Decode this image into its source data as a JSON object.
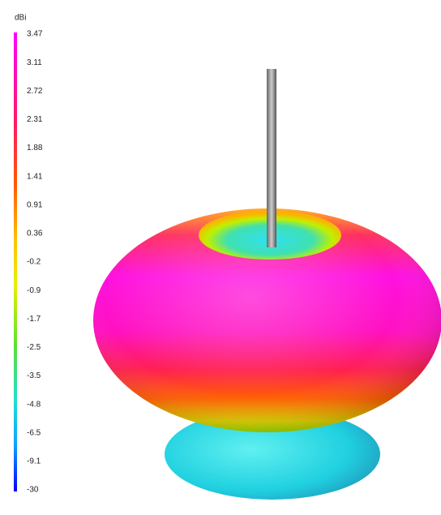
{
  "colorbar": {
    "unit": "dBi",
    "labels": [
      "3.47",
      "3.11",
      "2.72",
      "2.31",
      "1.88",
      "1.41",
      "0.91",
      "0.36",
      "-0.2",
      "-0.9",
      "-1.7",
      "-2.5",
      "-3.5",
      "-4.8",
      "-6.5",
      "-9.1",
      "-30"
    ]
  }
}
